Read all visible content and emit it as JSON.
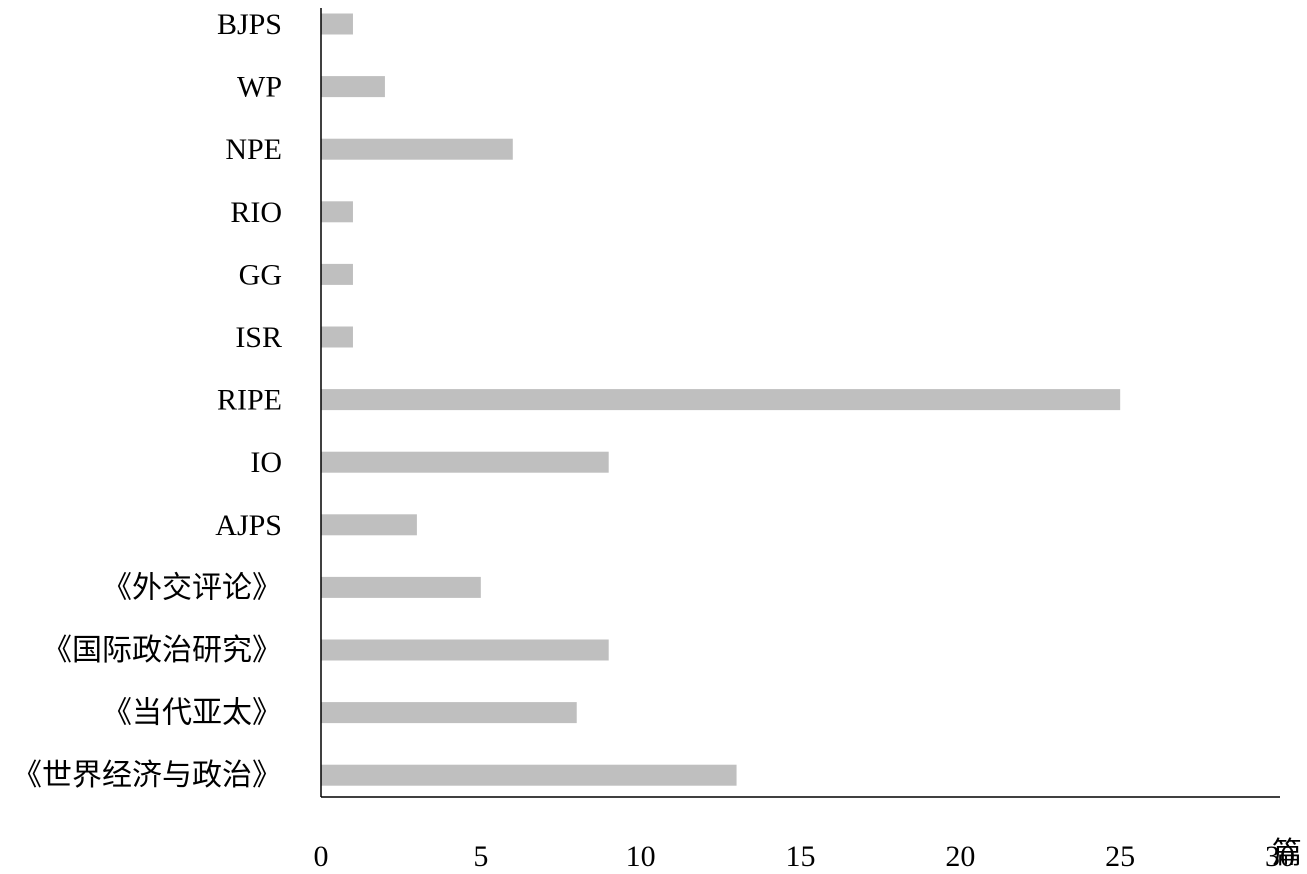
{
  "chart_data": {
    "type": "bar",
    "orientation": "horizontal",
    "categories": [
      "BJPS",
      "WP",
      "NPE",
      "RIO",
      "GG",
      "ISR",
      "RIPE",
      "IO",
      "AJPS",
      "《外交评论》",
      "《国际政治研究》",
      "《当代亚太》",
      "《世界经济与政治》"
    ],
    "values": [
      1,
      2,
      6,
      1,
      1,
      1,
      25,
      9,
      3,
      5,
      9,
      8,
      13
    ],
    "xlim": [
      0,
      30
    ],
    "xticks": [
      0,
      5,
      10,
      15,
      20,
      25,
      30
    ],
    "x_unit": "篇",
    "title": "",
    "xlabel": "",
    "ylabel": "",
    "grid": false,
    "legend": "none",
    "bar_color": "#bfbfbf",
    "axis_color": "#000000"
  }
}
